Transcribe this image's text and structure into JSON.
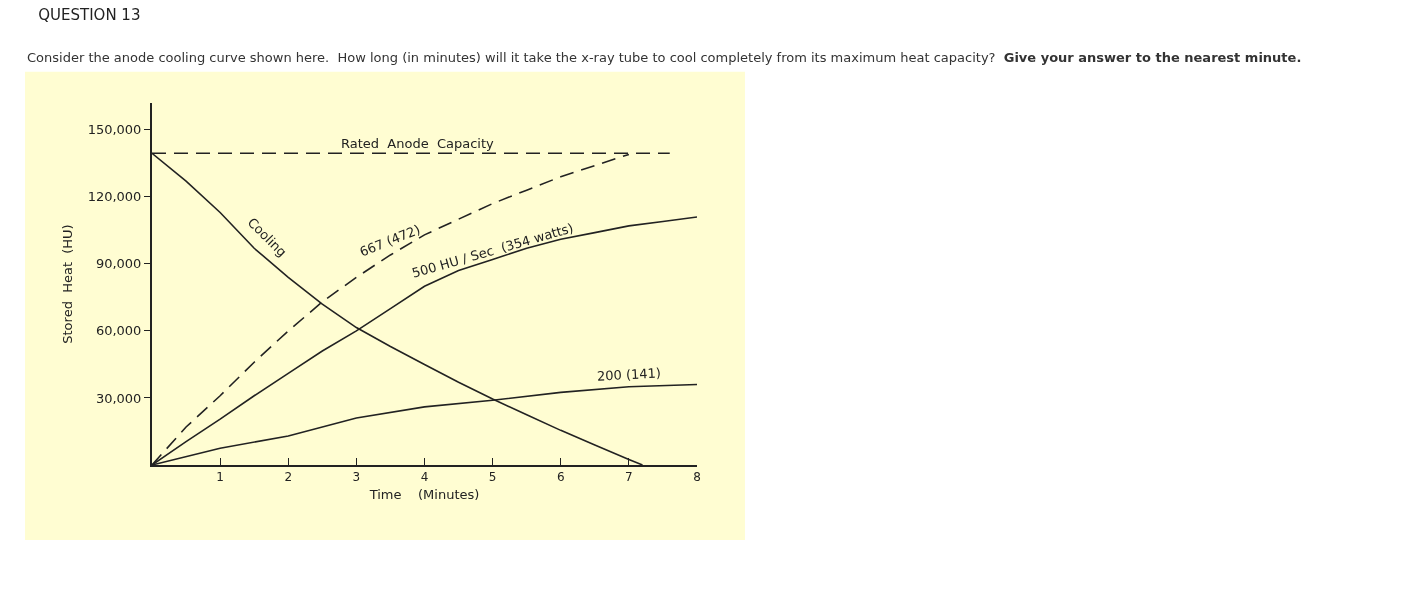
{
  "chart_data": {
    "type": "line",
    "title": "QUESTION 13",
    "subtitle": "Consider the anode cooling curve shown here.  How long (in minutes) will it take the x-ray tube to cool completely from its maximum heat capacity?",
    "annotations": [
      "Give your answer to the nearest minute."
    ],
    "xlabel": "Time    (Minutes)",
    "ylabel": "Stored  Heat  (HU)",
    "xlim": [
      0,
      8
    ],
    "xticks": [
      1,
      2,
      3,
      4,
      5,
      6,
      7,
      8
    ],
    "ylim": [
      0,
      162000
    ],
    "yticks": [
      {
        "value": 30000,
        "label": "30,000"
      },
      {
        "value": 60000,
        "label": "60,000"
      },
      {
        "value": 90000,
        "label": "90,000"
      },
      {
        "value": 120000,
        "label": "120,000"
      },
      {
        "value": 150000,
        "label": "150,000"
      }
    ],
    "grid": false,
    "legend": false,
    "marker": "none",
    "series": [
      {
        "name": "Rated  Anode  Capacity",
        "color": "#222222",
        "line_style": "dashed",
        "x": [
          0,
          7.6
        ],
        "values": [
          139500,
          139500
        ]
      },
      {
        "name": "Cooling",
        "color": "#222222",
        "line_style": "solid",
        "x": [
          0,
          0.5,
          1,
          1.5,
          2,
          2.5,
          3,
          3.5,
          4,
          4.5,
          5,
          5.5,
          6,
          6.5,
          7,
          7.2
        ],
        "values": [
          139500,
          127000,
          113000,
          97000,
          84000,
          72000,
          61500,
          53000,
          45000,
          37000,
          29500,
          22500,
          15500,
          9000,
          2500,
          0
        ]
      },
      {
        "name": "667 (472)",
        "color": "#222222",
        "line_style": "dashed",
        "x": [
          0,
          0.5,
          1,
          1.5,
          2,
          2.5,
          3,
          3.5,
          4,
          4.5,
          5,
          5.5,
          6,
          6.5,
          7
        ],
        "values": [
          0,
          17000,
          31000,
          46000,
          60000,
          73000,
          84000,
          94000,
          103000,
          110000,
          117000,
          123000,
          129000,
          134000,
          139000
        ]
      },
      {
        "name": "500 HU / Sec  (354 watts)",
        "color": "#222222",
        "line_style": "solid",
        "x": [
          0,
          0.5,
          1,
          1.5,
          2,
          2.5,
          3,
          3.5,
          4,
          4.5,
          5,
          5.5,
          6,
          6.5,
          7,
          7.5,
          8
        ],
        "values": [
          0,
          10500,
          20500,
          31000,
          41000,
          51000,
          60000,
          70000,
          80000,
          87000,
          92000,
          97000,
          101000,
          104000,
          107000,
          109000,
          111000
        ]
      },
      {
        "name": "200 (141)",
        "color": "#222222",
        "line_style": "solid",
        "x": [
          0,
          1,
          2,
          3,
          4,
          5,
          6,
          7,
          8
        ],
        "values": [
          0,
          7500,
          13000,
          21000,
          26000,
          29000,
          32500,
          35000,
          36000
        ]
      }
    ]
  }
}
